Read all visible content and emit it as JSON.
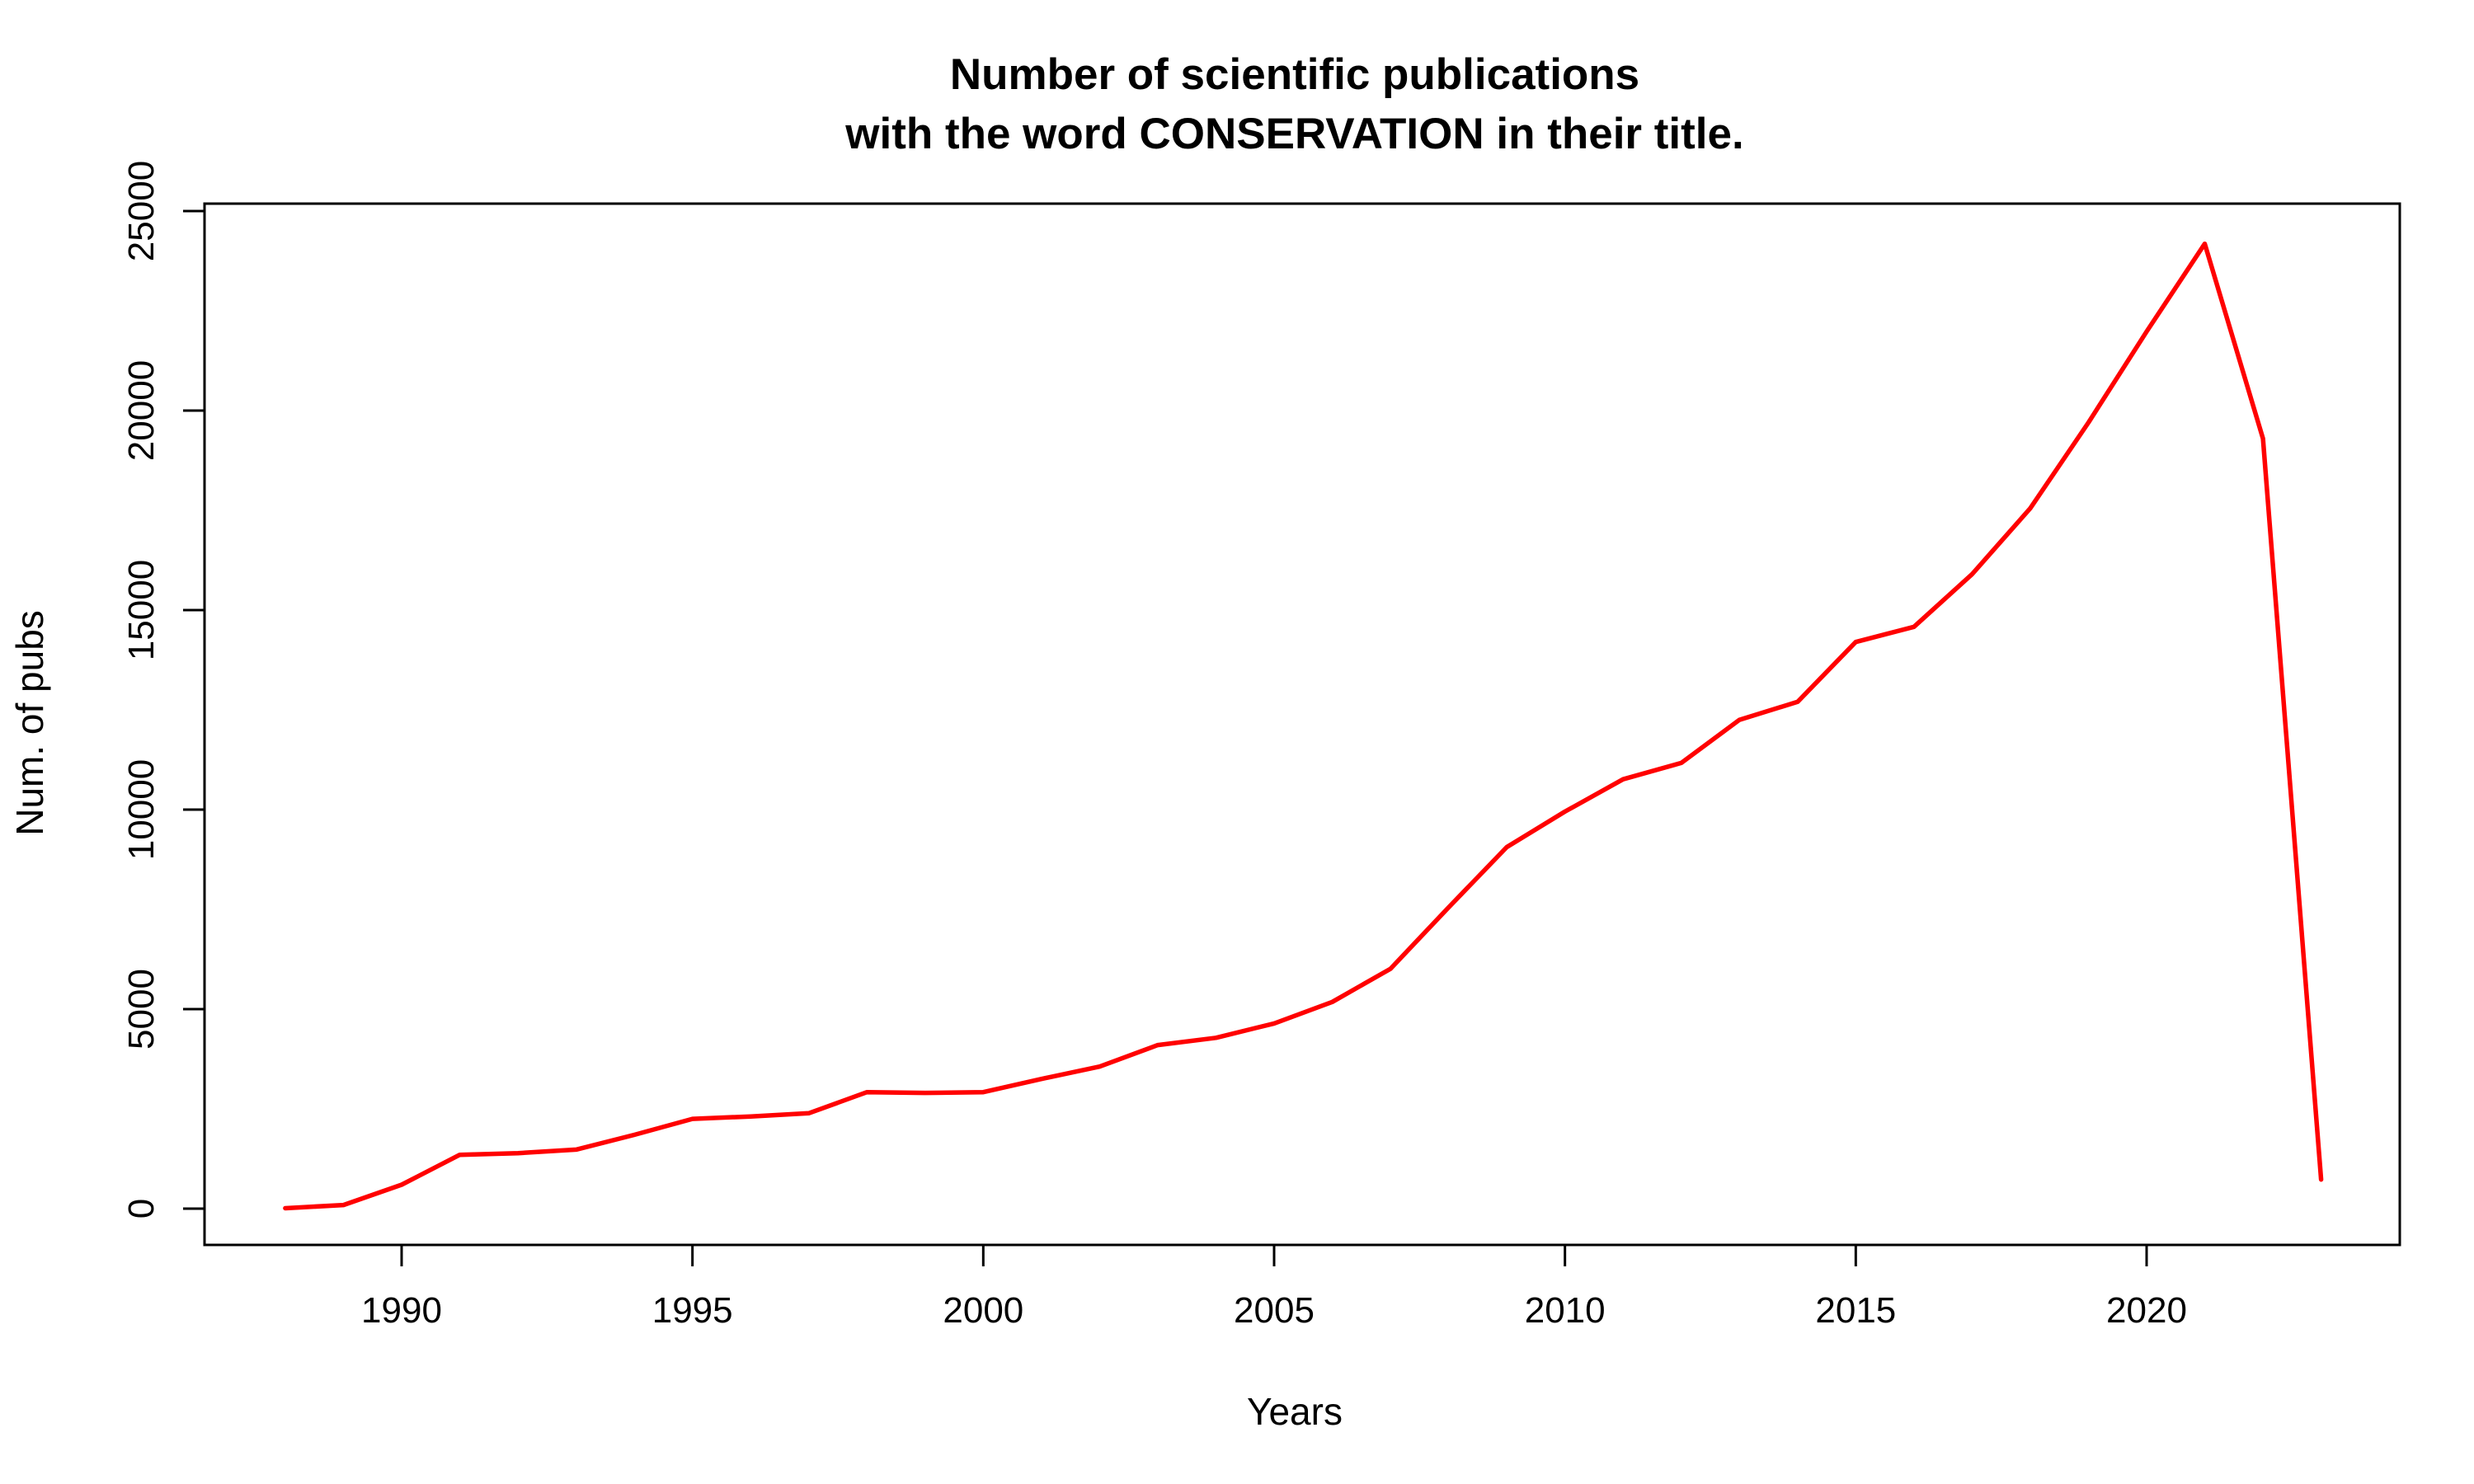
{
  "chart_data": {
    "type": "line",
    "title": "Number of scientific publications",
    "subtitle": "with the word CONSERVATION in their title.",
    "xlabel": "Years",
    "ylabel": "Num. of pubs",
    "xlim": [
      1988,
      2023
    ],
    "ylim": [
      0,
      25000
    ],
    "xticks": [
      1990,
      1995,
      2000,
      2005,
      2010,
      2015,
      2020
    ],
    "yticks": [
      0,
      5000,
      10000,
      15000,
      20000,
      25000
    ],
    "grid": false,
    "series": [
      {
        "color": "#ff0000",
        "x": [
          1988,
          1989,
          1990,
          1991,
          1992,
          1993,
          1994,
          1995,
          1996,
          1997,
          1998,
          1999,
          2000,
          2001,
          2002,
          2003,
          2004,
          2005,
          2006,
          2007,
          2008,
          2009,
          2010,
          2011,
          2012,
          2013,
          2014,
          2015,
          2016,
          2017,
          2018,
          2019,
          2020,
          2021,
          2022,
          2023
        ],
        "values": [
          10,
          90,
          600,
          1350,
          1390,
          1480,
          1850,
          2250,
          2310,
          2390,
          2920,
          2900,
          2920,
          3250,
          3560,
          4100,
          4280,
          4640,
          5180,
          6010,
          7550,
          9060,
          9950,
          10760,
          11170,
          12250,
          12700,
          14200,
          14580,
          15900,
          17550,
          19700,
          21980,
          24180,
          19300,
          730
        ]
      }
    ]
  }
}
